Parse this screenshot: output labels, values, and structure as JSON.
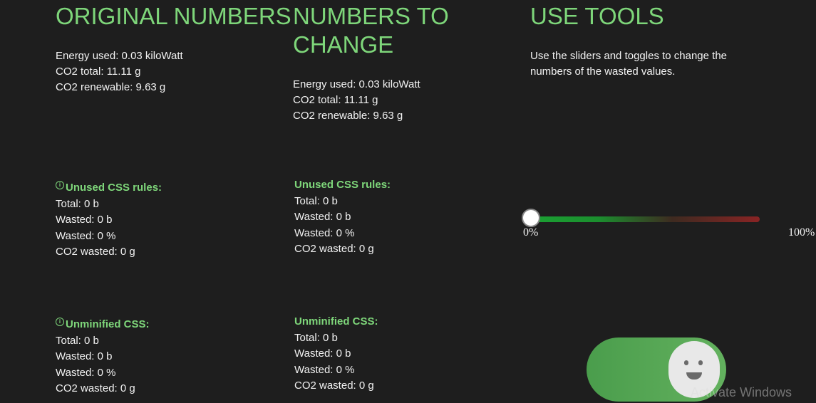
{
  "original": {
    "title": "ORIGINAL NUMBERS",
    "energy": "Energy used: 0.03 kiloWatt",
    "co2_total": "CO2 total: 11.11 g",
    "co2_renewable": "CO2 renewable: 9.63 g",
    "unused_css": {
      "heading": "Unused CSS rules:",
      "total": "Total: 0 b",
      "wasted_b": "Wasted: 0 b",
      "wasted_pct": "Wasted: 0 %",
      "co2_wasted": "CO2 wasted: 0 g"
    },
    "unminified_css": {
      "heading": "Unminified CSS:",
      "total": "Total: 0 b",
      "wasted_b": "Wasted: 0 b",
      "wasted_pct": "Wasted: 0 %",
      "co2_wasted": "CO2 wasted: 0 g"
    }
  },
  "change": {
    "title": "NUMBERS TO CHANGE",
    "energy": "Energy used: 0.03 kiloWatt",
    "co2_total": "CO2 total: 11.11 g",
    "co2_renewable": "CO2 renewable: 9.63 g",
    "unused_css": {
      "heading": "Unused CSS rules:",
      "total": "Total: 0 b",
      "wasted_b": "Wasted: 0 b",
      "wasted_pct": "Wasted: 0 %",
      "co2_wasted": "CO2 wasted: 0 g"
    },
    "unminified_css": {
      "heading": "Unminified CSS:",
      "total": "Total: 0 b",
      "wasted_b": "Wasted: 0 b",
      "wasted_pct": "Wasted: 0 %",
      "co2_wasted": "CO2 wasted: 0 g"
    }
  },
  "tools": {
    "title": "USE TOOLS",
    "description": "Use the sliders and toggles to change the numbers of the wasted values.",
    "slider": {
      "min_label": "0%",
      "max_label": "100%",
      "value_percent": 0
    },
    "toggle": {
      "state": "on"
    }
  },
  "watermark": "Activate Windows",
  "colors": {
    "accent": "#7ed67a",
    "background": "#1e1e1e"
  },
  "icons": {
    "info": "info-icon",
    "toggle_face": "smiley-face-icon"
  }
}
